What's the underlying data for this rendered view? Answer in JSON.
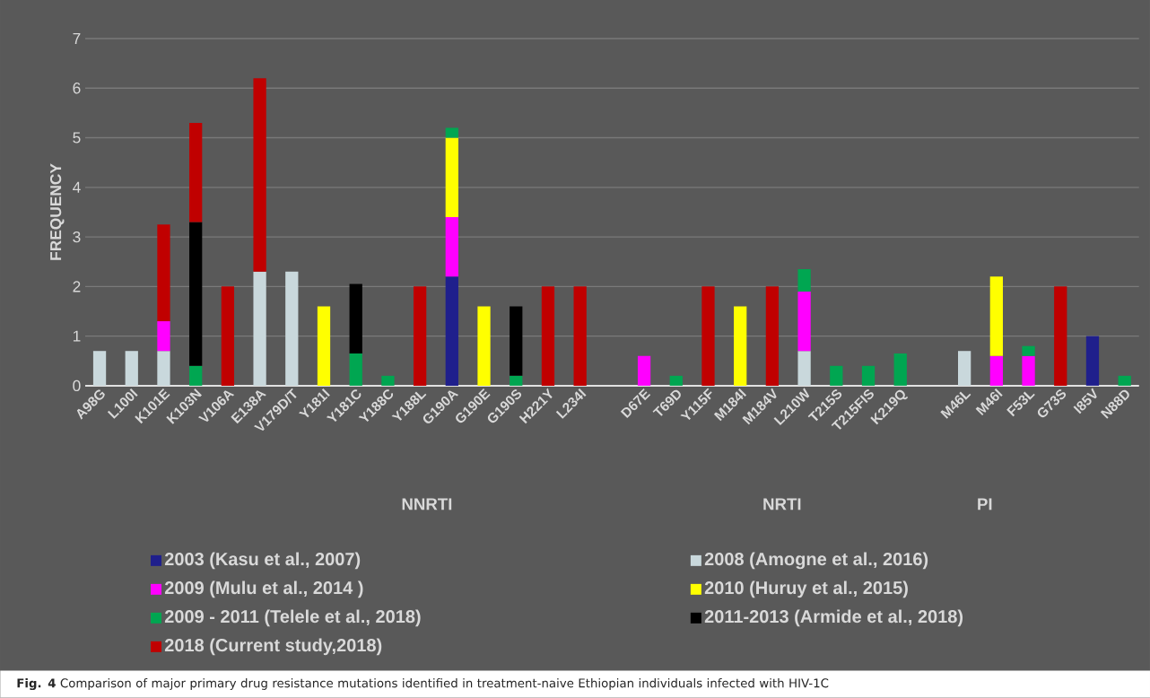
{
  "chart_data": {
    "type": "bar",
    "stacked": true,
    "ylabel": "FREQUENCY",
    "categories": [
      "A98G",
      "L100I",
      "K101E",
      "K103N",
      "V106A",
      "E138A",
      "V179D/T",
      "Y181I",
      "Y181C",
      "Y188C",
      "Y188L",
      "G190A",
      "G190E",
      "G190S",
      "H221Y",
      "L234I",
      null,
      "D67E",
      "T69D",
      "Y115F",
      "M184I",
      "M184V",
      "L210W",
      "T215S",
      "T215FIS",
      "K219Q",
      null,
      "M46L",
      "M46I",
      "F53L",
      "G73S",
      "I85V",
      "N88D"
    ],
    "series": [
      {
        "name": "2003 (Kasu et al., 2007)",
        "color": "#1f1f8c",
        "values": [
          null,
          null,
          null,
          null,
          null,
          null,
          null,
          null,
          null,
          null,
          null,
          2.2,
          null,
          null,
          null,
          null,
          null,
          null,
          null,
          null,
          null,
          null,
          null,
          null,
          null,
          null,
          null,
          null,
          null,
          null,
          null,
          1,
          null
        ]
      },
      {
        "name": "2008 (Amogne et al., 2016)",
        "color": "#c9d8dc",
        "values": [
          0.7,
          0.7,
          0.7,
          null,
          null,
          2.3,
          2.3,
          null,
          null,
          null,
          null,
          null,
          null,
          null,
          null,
          null,
          null,
          null,
          null,
          null,
          null,
          null,
          0.7,
          null,
          null,
          null,
          null,
          0.7,
          null,
          null,
          null,
          null,
          null
        ]
      },
      {
        "name": "2009 (Mulu et al., 2014 )",
        "color": "#ff00ff",
        "values": [
          null,
          null,
          0.6,
          null,
          null,
          null,
          null,
          null,
          null,
          null,
          null,
          1.2,
          null,
          null,
          null,
          null,
          null,
          0.6,
          null,
          null,
          null,
          null,
          1.2,
          null,
          null,
          null,
          null,
          null,
          0.6,
          0.6,
          null,
          null,
          null
        ]
      },
      {
        "name": "2010 (Huruy et al., 2015)",
        "color": "#ffff00",
        "values": [
          null,
          null,
          null,
          null,
          null,
          null,
          null,
          1.6,
          null,
          null,
          null,
          1.6,
          1.6,
          null,
          null,
          null,
          null,
          null,
          null,
          null,
          1.6,
          null,
          null,
          null,
          null,
          null,
          null,
          null,
          1.6,
          null,
          null,
          null,
          null
        ]
      },
      {
        "name": "2009 - 2011 (Telele et al., 2018)",
        "color": "#00a651",
        "values": [
          null,
          null,
          null,
          0.4,
          null,
          null,
          null,
          null,
          0.65,
          0.2,
          null,
          0.2,
          null,
          0.2,
          null,
          null,
          null,
          null,
          0.2,
          null,
          null,
          null,
          0.45,
          0.4,
          0.4,
          0.65,
          null,
          null,
          null,
          0.2,
          null,
          null,
          0.2
        ]
      },
      {
        "name": "2011-2013 (Armide et al., 2018)",
        "color": "#000000",
        "values": [
          null,
          null,
          null,
          2.9,
          null,
          null,
          null,
          null,
          1.4,
          null,
          null,
          null,
          null,
          1.4,
          null,
          null,
          null,
          null,
          null,
          null,
          null,
          null,
          null,
          null,
          null,
          null,
          null,
          null,
          null,
          null,
          null,
          null,
          null
        ]
      },
      {
        "name": "2018 (Current study,2018)",
        "color": "#c00000",
        "values": [
          null,
          null,
          1.95,
          2.0,
          2,
          3.9,
          null,
          null,
          null,
          null,
          2,
          null,
          null,
          null,
          2,
          2,
          null,
          null,
          null,
          2,
          null,
          2,
          null,
          null,
          null,
          null,
          null,
          null,
          null,
          null,
          2,
          null,
          null
        ]
      }
    ],
    "ylim": [
      0,
      7
    ],
    "yticks": [
      0,
      1,
      2,
      3,
      4,
      5,
      6,
      7
    ],
    "grid": "y",
    "legend": "bottom",
    "annotations": [
      "NNRTI",
      "NRTI",
      "PI",
      "**Fig. 4** Comparison of major primary drug resistance mutations identified in treatment-naive Ethiopian individuals infected with HIV-1C"
    ]
  }
}
